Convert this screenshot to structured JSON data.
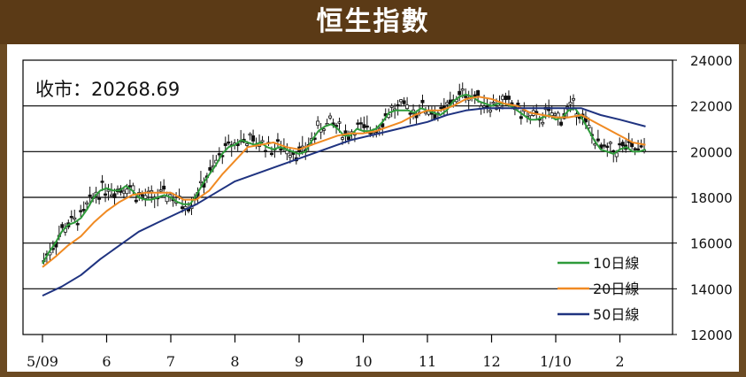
{
  "header": {
    "title": "恒生指數"
  },
  "close_label": "收市：20268.69",
  "colors": {
    "header_bg": "#5b3a16",
    "ma10": "#2e9b3a",
    "ma20": "#f08a22",
    "ma50": "#1f3380",
    "candle": "#111111"
  },
  "chart_data": {
    "type": "line",
    "title": "恒生指數",
    "xlabel": "",
    "ylabel": "",
    "ylim": [
      12000,
      24000
    ],
    "yticks": [
      12000,
      14000,
      16000,
      18000,
      20000,
      22000,
      24000
    ],
    "gridlines_at": [
      14000,
      16000,
      18000,
      20000,
      22000
    ],
    "x_range": [
      0,
      9.75
    ],
    "x_ticks": [
      {
        "x": 0,
        "label": "5/09"
      },
      {
        "x": 1,
        "label": "6"
      },
      {
        "x": 2,
        "label": "7"
      },
      {
        "x": 3,
        "label": "8"
      },
      {
        "x": 4,
        "label": "9"
      },
      {
        "x": 5,
        "label": "10"
      },
      {
        "x": 6,
        "label": "11"
      },
      {
        "x": 7,
        "label": "12"
      },
      {
        "x": 8,
        "label": "1/10"
      },
      {
        "x": 9,
        "label": "2"
      }
    ],
    "x_unit": "months since 2009-05",
    "close_price": 20268.69,
    "legend_position": "bottom-right",
    "series": [
      {
        "name": "10日線",
        "color": "#2e9b3a",
        "points": [
          [
            0,
            15100
          ],
          [
            0.1,
            15600
          ],
          [
            0.2,
            16000
          ],
          [
            0.3,
            16500
          ],
          [
            0.4,
            16800
          ],
          [
            0.5,
            16900
          ],
          [
            0.6,
            17100
          ],
          [
            0.7,
            17500
          ],
          [
            0.8,
            18000
          ],
          [
            0.9,
            18300
          ],
          [
            1.0,
            18400
          ],
          [
            1.1,
            18300
          ],
          [
            1.2,
            18300
          ],
          [
            1.3,
            18500
          ],
          [
            1.4,
            18300
          ],
          [
            1.5,
            18000
          ],
          [
            1.6,
            17900
          ],
          [
            1.7,
            17900
          ],
          [
            1.8,
            18000
          ],
          [
            1.9,
            18100
          ],
          [
            2.0,
            18000
          ],
          [
            2.1,
            17800
          ],
          [
            2.2,
            17700
          ],
          [
            2.3,
            17700
          ],
          [
            2.4,
            18100
          ],
          [
            2.5,
            18600
          ],
          [
            2.6,
            19000
          ],
          [
            2.7,
            19400
          ],
          [
            2.8,
            19900
          ],
          [
            2.9,
            20200
          ],
          [
            3.0,
            20300
          ],
          [
            3.1,
            20500
          ],
          [
            3.2,
            20400
          ],
          [
            3.3,
            20300
          ],
          [
            3.4,
            20400
          ],
          [
            3.5,
            20200
          ],
          [
            3.6,
            20100
          ],
          [
            3.7,
            20200
          ],
          [
            3.8,
            20100
          ],
          [
            3.9,
            20000
          ],
          [
            4.0,
            19900
          ],
          [
            4.1,
            20000
          ],
          [
            4.2,
            20500
          ],
          [
            4.3,
            20900
          ],
          [
            4.4,
            21100
          ],
          [
            4.5,
            21200
          ],
          [
            4.6,
            21000
          ],
          [
            4.7,
            20700
          ],
          [
            4.8,
            20700
          ],
          [
            4.9,
            21000
          ],
          [
            5.0,
            20900
          ],
          [
            5.1,
            20900
          ],
          [
            5.2,
            21000
          ],
          [
            5.3,
            21300
          ],
          [
            5.4,
            21700
          ],
          [
            5.5,
            21800
          ],
          [
            5.6,
            21800
          ],
          [
            5.7,
            21800
          ],
          [
            5.8,
            21700
          ],
          [
            5.9,
            21900
          ],
          [
            6.0,
            21800
          ],
          [
            6.1,
            21700
          ],
          [
            6.2,
            21600
          ],
          [
            6.3,
            21800
          ],
          [
            6.4,
            22200
          ],
          [
            6.5,
            22400
          ],
          [
            6.6,
            22500
          ],
          [
            6.7,
            22400
          ],
          [
            6.8,
            22200
          ],
          [
            6.9,
            22100
          ],
          [
            7.0,
            22000
          ],
          [
            7.1,
            22100
          ],
          [
            7.2,
            22100
          ],
          [
            7.3,
            22000
          ],
          [
            7.4,
            21800
          ],
          [
            7.5,
            21600
          ],
          [
            7.6,
            21400
          ],
          [
            7.7,
            21400
          ],
          [
            7.8,
            21500
          ],
          [
            7.9,
            21600
          ],
          [
            8.0,
            21400
          ],
          [
            8.1,
            21500
          ],
          [
            8.2,
            21800
          ],
          [
            8.3,
            21900
          ],
          [
            8.4,
            21500
          ],
          [
            8.5,
            21000
          ],
          [
            8.6,
            20500
          ],
          [
            8.7,
            20100
          ],
          [
            8.8,
            20000
          ],
          [
            8.9,
            19900
          ],
          [
            9.0,
            20100
          ],
          [
            9.1,
            20200
          ],
          [
            9.2,
            20000
          ],
          [
            9.3,
            20000
          ],
          [
            9.4,
            20100
          ]
        ]
      },
      {
        "name": "20日線",
        "color": "#f08a22",
        "points": [
          [
            0,
            14950
          ],
          [
            0.2,
            15400
          ],
          [
            0.4,
            15900
          ],
          [
            0.6,
            16300
          ],
          [
            0.8,
            16900
          ],
          [
            1.0,
            17400
          ],
          [
            1.2,
            17800
          ],
          [
            1.4,
            18100
          ],
          [
            1.6,
            18200
          ],
          [
            1.8,
            18200
          ],
          [
            2.0,
            18200
          ],
          [
            2.2,
            17900
          ],
          [
            2.4,
            17900
          ],
          [
            2.6,
            18300
          ],
          [
            2.8,
            19000
          ],
          [
            3.0,
            19600
          ],
          [
            3.2,
            20200
          ],
          [
            3.4,
            20300
          ],
          [
            3.6,
            20400
          ],
          [
            3.8,
            20200
          ],
          [
            4.0,
            20100
          ],
          [
            4.2,
            20300
          ],
          [
            4.4,
            20500
          ],
          [
            4.6,
            20700
          ],
          [
            4.8,
            20800
          ],
          [
            5.0,
            20800
          ],
          [
            5.2,
            20900
          ],
          [
            5.4,
            21100
          ],
          [
            5.6,
            21300
          ],
          [
            5.8,
            21600
          ],
          [
            6.0,
            21800
          ],
          [
            6.2,
            21800
          ],
          [
            6.4,
            22000
          ],
          [
            6.6,
            22300
          ],
          [
            6.8,
            22400
          ],
          [
            7.0,
            22300
          ],
          [
            7.2,
            22100
          ],
          [
            7.4,
            22000
          ],
          [
            7.6,
            21700
          ],
          [
            7.8,
            21600
          ],
          [
            8.0,
            21500
          ],
          [
            8.2,
            21500
          ],
          [
            8.4,
            21600
          ],
          [
            8.6,
            21300
          ],
          [
            8.8,
            21000
          ],
          [
            9.0,
            20700
          ],
          [
            9.2,
            20400
          ],
          [
            9.4,
            20300
          ]
        ]
      },
      {
        "name": "50日線",
        "color": "#1f3380",
        "points": [
          [
            0,
            13700
          ],
          [
            0.3,
            14100
          ],
          [
            0.6,
            14600
          ],
          [
            0.9,
            15300
          ],
          [
            1.2,
            15900
          ],
          [
            1.5,
            16500
          ],
          [
            1.8,
            16900
          ],
          [
            2.1,
            17300
          ],
          [
            2.4,
            17700
          ],
          [
            2.7,
            18200
          ],
          [
            3.0,
            18700
          ],
          [
            3.3,
            19000
          ],
          [
            3.6,
            19300
          ],
          [
            3.9,
            19600
          ],
          [
            4.2,
            19900
          ],
          [
            4.5,
            20200
          ],
          [
            4.8,
            20500
          ],
          [
            5.1,
            20700
          ],
          [
            5.4,
            20900
          ],
          [
            5.7,
            21100
          ],
          [
            6.0,
            21300
          ],
          [
            6.3,
            21600
          ],
          [
            6.6,
            21800
          ],
          [
            6.9,
            21900
          ],
          [
            7.2,
            21900
          ],
          [
            7.5,
            21900
          ],
          [
            7.8,
            21900
          ],
          [
            8.1,
            21900
          ],
          [
            8.4,
            21900
          ],
          [
            8.7,
            21600
          ],
          [
            9.0,
            21400
          ],
          [
            9.4,
            21100
          ]
        ]
      }
    ]
  }
}
